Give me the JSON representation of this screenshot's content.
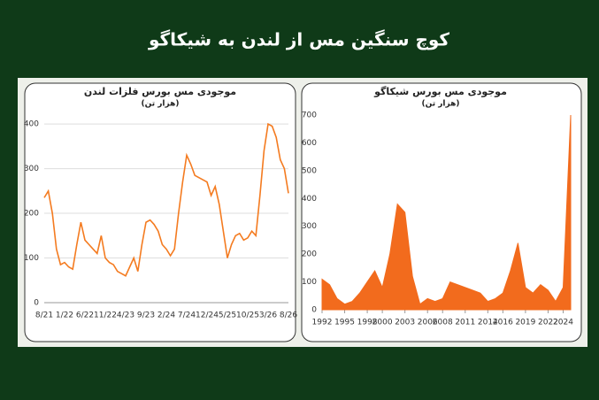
{
  "header": {
    "title": "کوچ سنگین مس از لندن به شیکاگو"
  },
  "chart_data": [
    {
      "type": "line",
      "title": "موجودی مس بورس فلزات لندن",
      "subtitle": "(هزار تن)",
      "color": "#f47b20",
      "categories": [
        "8/21",
        null,
        null,
        null,
        null,
        "1/22",
        null,
        null,
        null,
        null,
        "6/22",
        null,
        null,
        null,
        null,
        "11/22",
        null,
        null,
        null,
        null,
        "4/23",
        null,
        null,
        null,
        null,
        "9/23",
        null,
        null,
        null,
        null,
        "2/24",
        null,
        null,
        null,
        null,
        "7/24",
        null,
        null,
        null,
        null,
        "12/24",
        null,
        null,
        null,
        null,
        "5/25",
        null,
        null,
        null,
        null,
        "10/25",
        null,
        null,
        null,
        null,
        "3/26",
        null,
        null,
        null,
        null,
        "8/26"
      ],
      "values": [
        235,
        250,
        200,
        120,
        85,
        90,
        80,
        75,
        130,
        180,
        140,
        130,
        120,
        110,
        150,
        100,
        90,
        85,
        70,
        65,
        60,
        80,
        100,
        70,
        130,
        180,
        185,
        175,
        160,
        130,
        120,
        105,
        120,
        200,
        270,
        330,
        310,
        285,
        280,
        275,
        270,
        240,
        260,
        220,
        160,
        100,
        130,
        150,
        155,
        140,
        145,
        160,
        150,
        240,
        340,
        400,
        395,
        370,
        320,
        300,
        245
      ],
      "ylim": [
        0,
        420
      ],
      "yticks": [
        0,
        100,
        200,
        300,
        400
      ],
      "grid": true
    },
    {
      "type": "area",
      "title": "موجودی مس بورس شیکاگو",
      "subtitle": "(هزار تن)",
      "color": "#f26b1d",
      "x": [
        1992,
        1993,
        1994,
        1995,
        1996,
        1997,
        1998,
        1999,
        2000,
        2001,
        2002,
        2003,
        2004,
        2005,
        2006,
        2007,
        2008,
        2009,
        2010,
        2011,
        2012,
        2013,
        2014,
        2015,
        2016,
        2017,
        2018,
        2019,
        2020,
        2021,
        2022,
        2023,
        2024,
        2025
      ],
      "values": [
        110,
        90,
        40,
        20,
        30,
        60,
        100,
        140,
        80,
        200,
        380,
        350,
        120,
        20,
        40,
        30,
        40,
        100,
        90,
        80,
        70,
        60,
        30,
        40,
        60,
        140,
        240,
        80,
        60,
        90,
        70,
        30,
        80,
        700
      ],
      "xlim": [
        1992,
        2025
      ],
      "xticks": [
        1992,
        1995,
        1998,
        2000,
        2003,
        2006,
        2008,
        2011,
        2014,
        2016,
        2019,
        2022,
        2024
      ],
      "ylim": [
        0,
        700
      ],
      "yticks": [
        0,
        100,
        200,
        300,
        400,
        500,
        600,
        700
      ],
      "grid": false
    }
  ]
}
